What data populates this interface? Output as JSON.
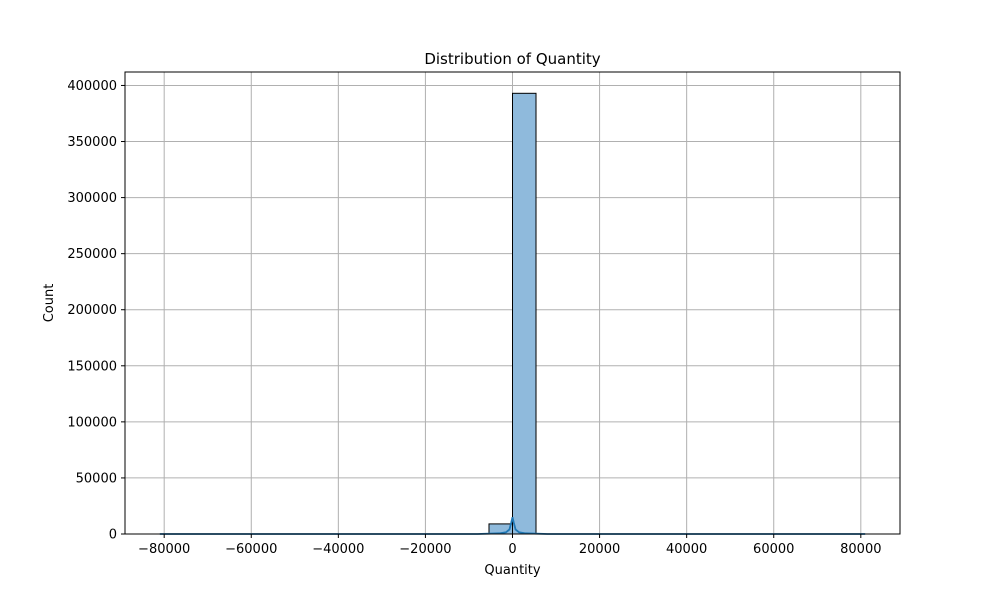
{
  "chart_data": {
    "type": "bar",
    "subtype": "histogram",
    "title": "Distribution of Quantity",
    "xlabel": "Quantity",
    "ylabel": "Count",
    "xlim": [
      -89000,
      89000
    ],
    "ylim": [
      0,
      412000
    ],
    "x_ticks": [
      -80000,
      -60000,
      -40000,
      -20000,
      0,
      20000,
      40000,
      60000,
      80000
    ],
    "x_tick_labels": [
      "−80000",
      "−60000",
      "−40000",
      "−20000",
      "0",
      "20000",
      "40000",
      "60000",
      "80000"
    ],
    "y_ticks": [
      0,
      50000,
      100000,
      150000,
      200000,
      250000,
      300000,
      350000,
      400000
    ],
    "y_tick_labels": [
      "0",
      "50000",
      "100000",
      "150000",
      "200000",
      "250000",
      "300000",
      "350000",
      "400000"
    ],
    "bins": [
      {
        "x0": -5400,
        "x1": 0,
        "count": 9000
      },
      {
        "x0": 0,
        "x1": 5400,
        "count": 393000
      }
    ],
    "kde": {
      "x": [
        -81000,
        -20000,
        -8000,
        -3000,
        -1500,
        -700,
        -300,
        0,
        300,
        700,
        1500,
        3000,
        8000,
        20000,
        81000
      ],
      "y": [
        0,
        0,
        0,
        600,
        1500,
        4000,
        10000,
        15000,
        10000,
        4000,
        1500,
        600,
        0,
        0,
        0
      ]
    },
    "grid": true,
    "legend": "none",
    "colors": {
      "bar_fill": "#8fbadc",
      "bar_edge": "#000000",
      "kde_line": "#1f77b4",
      "grid": "#b0b0b0"
    }
  }
}
